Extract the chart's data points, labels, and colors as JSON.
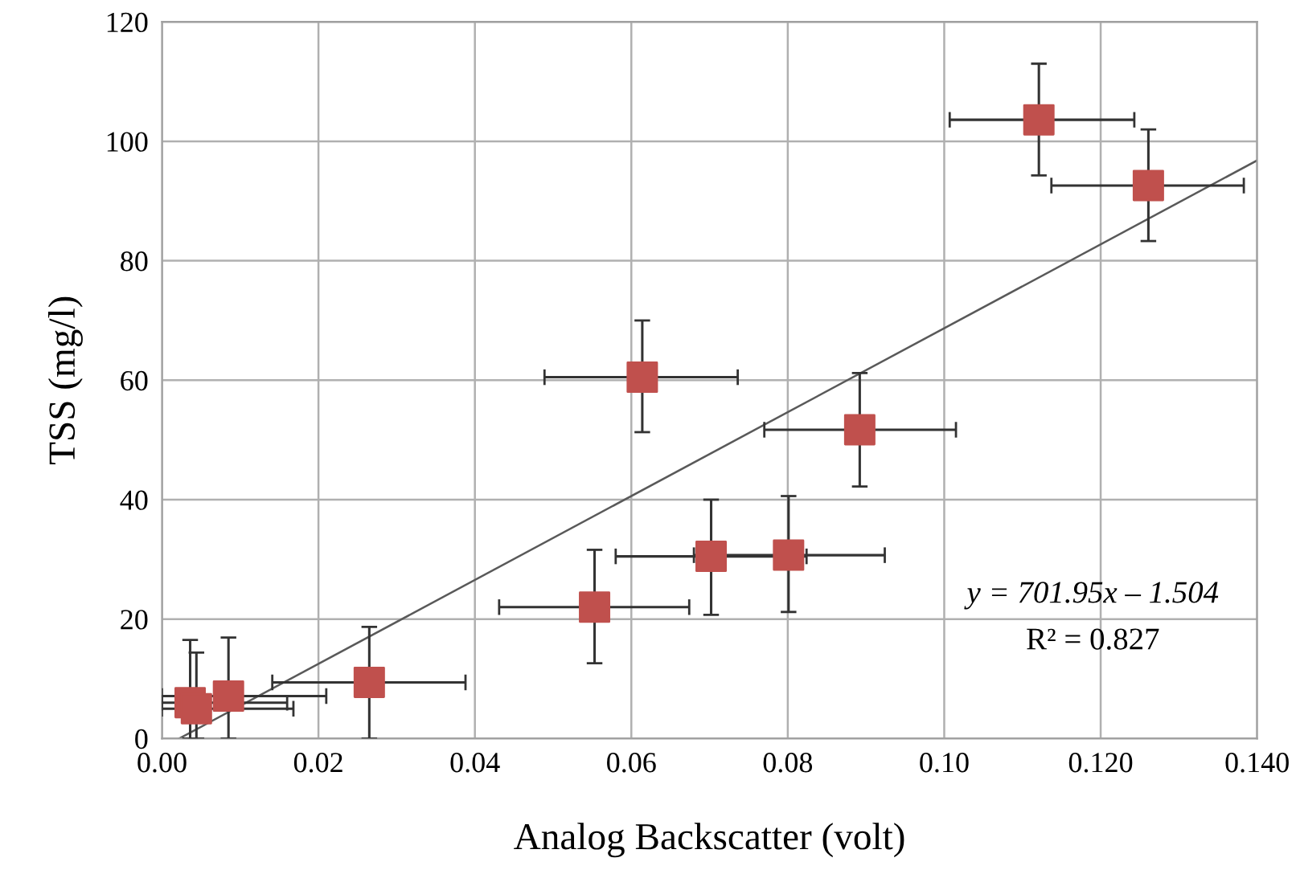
{
  "chart_data": {
    "type": "scatter",
    "xlabel": "Analog Backscatter (volt)",
    "ylabel": "TSS (mg/l)",
    "xlim": [
      0,
      0.14
    ],
    "xticks": [
      {
        "value": 0,
        "label": "0.00"
      },
      {
        "value": 0.02,
        "label": "0.02"
      },
      {
        "value": 0.04,
        "label": "0.04"
      },
      {
        "value": 0.06,
        "label": "0.06"
      },
      {
        "value": 0.08,
        "label": "0.08"
      },
      {
        "value": 0.1,
        "label": "0.10"
      },
      {
        "value": 0.12,
        "label": "0.120"
      },
      {
        "value": 0.14,
        "label": "0.140"
      }
    ],
    "ylim": [
      0,
      120
    ],
    "yticks": [
      0,
      20,
      40,
      60,
      80,
      100,
      120
    ],
    "grid": true,
    "annotations": [
      "y = 701.95x – 1.504",
      "R² = 0.827"
    ],
    "series": [
      {
        "color": "#c0504d",
        "marker": "square",
        "x": [
          0.1121,
          0.1261,
          0.0614,
          0.0892,
          0.0801,
          0.0702,
          0.0553,
          0.0265,
          0.0085,
          0.0036,
          0.0044
        ],
        "values": [
          103.6,
          92.6,
          60.5,
          51.7,
          30.7,
          30.5,
          22.0,
          9.4,
          7.1,
          6.0,
          5.0
        ],
        "xerrors": [
          [
            0.1007,
            0.1243
          ],
          [
            0.1137,
            0.1383
          ],
          [
            0.0489,
            0.0736
          ],
          [
            0.077,
            0.1015
          ],
          [
            0.068,
            0.0924
          ],
          [
            0.058,
            0.0824
          ],
          [
            0.0431,
            0.0674
          ],
          [
            0.0141,
            0.0388
          ],
          [
            0.0,
            0.021
          ],
          [
            0.0,
            0.016
          ],
          [
            0.0,
            0.0168
          ]
        ],
        "errors": [
          [
            94.3,
            113.0
          ],
          [
            83.3,
            102.0
          ],
          [
            51.3,
            70.0
          ],
          [
            42.2,
            61.2
          ],
          [
            21.2,
            40.6
          ],
          [
            20.7,
            40.0
          ],
          [
            12.6,
            31.6
          ],
          [
            0.0,
            18.7
          ],
          [
            0.0,
            16.9
          ],
          [
            0.0,
            16.5
          ],
          [
            0.0,
            14.4
          ]
        ]
      },
      {
        "type": "line",
        "color": "#595959",
        "x": [
          0.0022,
          0.14
        ],
        "values": [
          0.0,
          96.8
        ]
      }
    ]
  }
}
